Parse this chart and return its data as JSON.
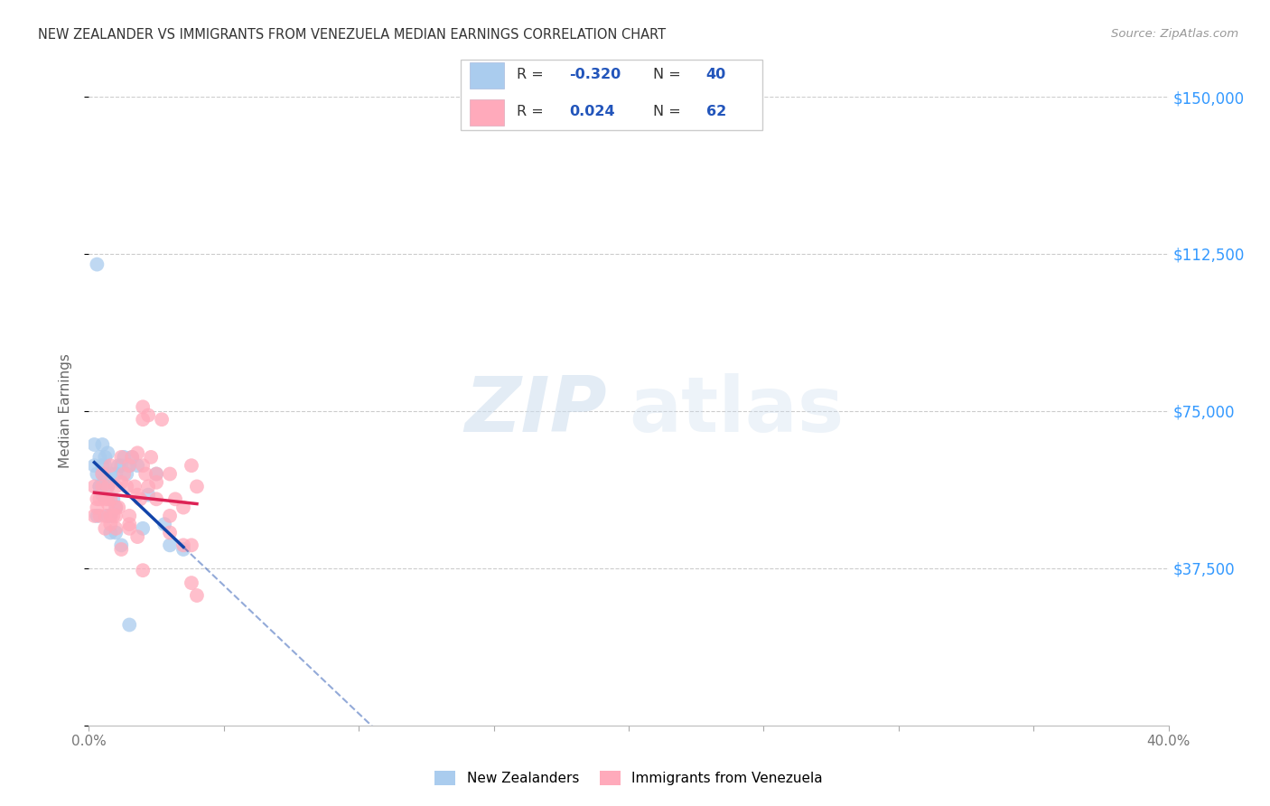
{
  "title": "NEW ZEALANDER VS IMMIGRANTS FROM VENEZUELA MEDIAN EARNINGS CORRELATION CHART",
  "source": "Source: ZipAtlas.com",
  "ylabel": "Median Earnings",
  "xlim": [
    0,
    0.4
  ],
  "ylim": [
    0,
    150000
  ],
  "xticks": [
    0.0,
    0.05,
    0.1,
    0.15,
    0.2,
    0.25,
    0.3,
    0.35,
    0.4
  ],
  "xticklabels": [
    "0.0%",
    "",
    "",
    "",
    "",
    "",
    "",
    "",
    "40.0%"
  ],
  "yticks": [
    0,
    37500,
    75000,
    112500,
    150000
  ],
  "yticklabels": [
    "",
    "$37,500",
    "$75,000",
    "$112,500",
    "$150,000"
  ],
  "blue_color": "#AACCEE",
  "pink_color": "#FFAABB",
  "blue_line_color": "#1144AA",
  "pink_line_color": "#DD2255",
  "nz_x": [
    0.002,
    0.003,
    0.003,
    0.004,
    0.004,
    0.005,
    0.005,
    0.005,
    0.006,
    0.006,
    0.007,
    0.007,
    0.008,
    0.008,
    0.009,
    0.01,
    0.01,
    0.011,
    0.012,
    0.013,
    0.014,
    0.015,
    0.016,
    0.018,
    0.02,
    0.022,
    0.025,
    0.028,
    0.03,
    0.035,
    0.002,
    0.003,
    0.004,
    0.005,
    0.006,
    0.007,
    0.008,
    0.01,
    0.012,
    0.015
  ],
  "nz_y": [
    62000,
    110000,
    60000,
    64000,
    57000,
    62000,
    60000,
    55000,
    59000,
    62000,
    65000,
    57000,
    60000,
    50000,
    54000,
    60000,
    52000,
    62000,
    62000,
    64000,
    60000,
    62000,
    64000,
    62000,
    47000,
    55000,
    60000,
    48000,
    43000,
    42000,
    67000,
    50000,
    57000,
    67000,
    64000,
    50000,
    46000,
    46000,
    43000,
    24000
  ],
  "ven_x": [
    0.002,
    0.003,
    0.004,
    0.005,
    0.006,
    0.007,
    0.008,
    0.009,
    0.01,
    0.011,
    0.012,
    0.013,
    0.014,
    0.015,
    0.016,
    0.017,
    0.018,
    0.019,
    0.02,
    0.021,
    0.022,
    0.023,
    0.025,
    0.027,
    0.03,
    0.032,
    0.035,
    0.038,
    0.04,
    0.002,
    0.003,
    0.004,
    0.005,
    0.006,
    0.007,
    0.008,
    0.01,
    0.012,
    0.015,
    0.018,
    0.02,
    0.022,
    0.03,
    0.035,
    0.038,
    0.04,
    0.006,
    0.008,
    0.01,
    0.015,
    0.02,
    0.025,
    0.03,
    0.008,
    0.012,
    0.018,
    0.025,
    0.007,
    0.01,
    0.015,
    0.02,
    0.038
  ],
  "ven_y": [
    57000,
    54000,
    50000,
    60000,
    54000,
    57000,
    62000,
    50000,
    57000,
    52000,
    64000,
    60000,
    57000,
    62000,
    64000,
    57000,
    65000,
    54000,
    73000,
    60000,
    57000,
    64000,
    60000,
    73000,
    60000,
    54000,
    52000,
    62000,
    57000,
    50000,
    52000,
    54000,
    57000,
    47000,
    54000,
    50000,
    47000,
    42000,
    50000,
    45000,
    76000,
    74000,
    46000,
    43000,
    43000,
    31000,
    50000,
    54000,
    52000,
    47000,
    62000,
    54000,
    50000,
    48000,
    58000,
    55000,
    58000,
    53000,
    50000,
    48000,
    37000,
    34000
  ]
}
